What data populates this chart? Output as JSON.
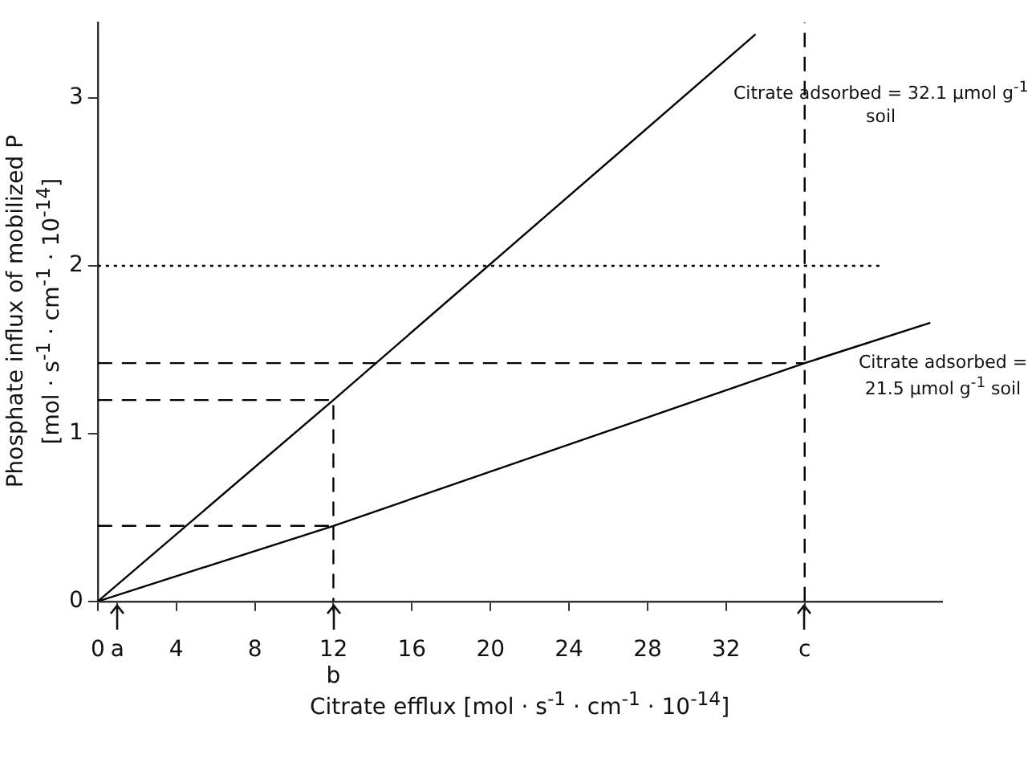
{
  "chart_data": {
    "type": "line",
    "xlabel": "Citrate efflux [mol · s$^{-1}$ · cm$^{-1}$ · 10$^{-14}$]",
    "ylabel": "Phosphate influx of mobilized P\n[mol · s$^{-1}$ · cm$^{-1}$ · 10$^{-14}$]",
    "xlim": [
      0,
      43
    ],
    "ylim": [
      0,
      3.45
    ],
    "xticks": [
      0,
      {
        "value": 1,
        "label": "a"
      },
      4,
      8,
      {
        "value": 12,
        "label": "12\nb"
      },
      16,
      20,
      24,
      28,
      32,
      {
        "value": 36,
        "label": "c"
      }
    ],
    "yticks": [
      0,
      1,
      2,
      3
    ],
    "grid": false,
    "legend": false,
    "marker": "none",
    "series": [
      {
        "name": "Citrate adsorbed = 32.1 µmol g$^{-1}$\nsoil",
        "color": "#000000",
        "x": [
          0,
          12,
          33.5
        ],
        "values": [
          0,
          1.2,
          3.38
        ],
        "line_style": "solid"
      },
      {
        "name": "Citrate adsorbed =\n21.5 µmol g$^{-1}$ soil",
        "color": "#000000",
        "x": [
          0,
          12,
          36,
          42.4
        ],
        "values": [
          0,
          0.45,
          1.42,
          1.66
        ],
        "line_style": "solid"
      },
      {
        "color": "#000000",
        "x": [
          0,
          40
        ],
        "values": [
          2,
          2
        ],
        "line_style": "dotted"
      },
      {
        "color": "#000000",
        "x": [
          0,
          36
        ],
        "values": [
          1.42,
          1.42
        ],
        "line_style": "dashed"
      },
      {
        "color": "#000000",
        "x": [
          0,
          12,
          12
        ],
        "values": [
          1.2,
          1.2,
          0
        ],
        "line_style": "dashed"
      },
      {
        "color": "#000000",
        "x": [
          0,
          12
        ],
        "values": [
          0.45,
          0.45
        ],
        "line_style": "dashed"
      },
      {
        "color": "#000000",
        "x": [
          36,
          36
        ],
        "values": [
          0,
          3.45
        ],
        "line_style": "dashed"
      }
    ]
  }
}
